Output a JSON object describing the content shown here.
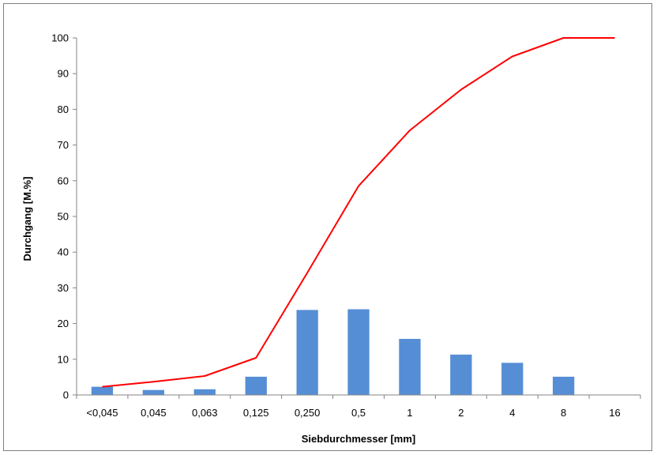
{
  "chart_data": {
    "type": "bar",
    "title": "",
    "xlabel": "Siebdurchmesser [mm]",
    "ylabel": "Durchgang [M.%]",
    "ylim": [
      0,
      100
    ],
    "yticks": [
      "0",
      "10",
      "20",
      "30",
      "40",
      "50",
      "60",
      "70",
      "80",
      "90",
      "100"
    ],
    "categories": [
      "<0,045",
      "0,045",
      "0,063",
      "0,125",
      "0,250",
      "0,5",
      "1",
      "2",
      "4",
      "8",
      "16"
    ],
    "series": [
      {
        "type": "bar",
        "color": "#558ed5",
        "values": [
          2.3,
          1.4,
          1.6,
          5.1,
          23.8,
          24.0,
          15.7,
          11.3,
          9.0,
          5.1,
          0
        ]
      },
      {
        "type": "line",
        "color": "#ff0000",
        "values": [
          2.3,
          3.7,
          5.3,
          10.4,
          34.2,
          58.5,
          74.1,
          85.5,
          94.8,
          100,
          100
        ]
      }
    ],
    "grid": false,
    "legend": "none"
  }
}
